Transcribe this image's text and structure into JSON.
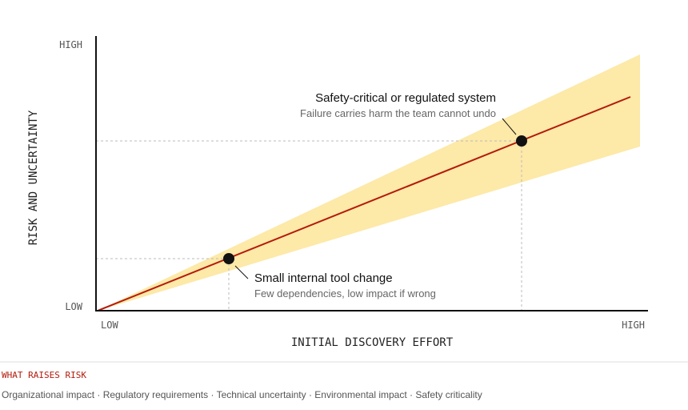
{
  "axes": {
    "y_label": "RISK AND UNCERTAINTY",
    "x_label": "INITIAL DISCOVERY EFFORT",
    "y_low": "LOW",
    "y_high": "HIGH",
    "x_low": "LOW",
    "x_high": "HIGH"
  },
  "annotations": [
    {
      "title": "Safety-critical or regulated system",
      "subtitle": "Failure carries harm the team cannot undo"
    },
    {
      "title": "Small internal tool change",
      "subtitle": "Few dependencies, low impact if wrong"
    }
  ],
  "footer": {
    "heading": "WHAT RAISES RISK",
    "items": "Organizational impact · Regulatory requirements · Technical uncertainty · Environmental impact · Safety criticality"
  }
}
